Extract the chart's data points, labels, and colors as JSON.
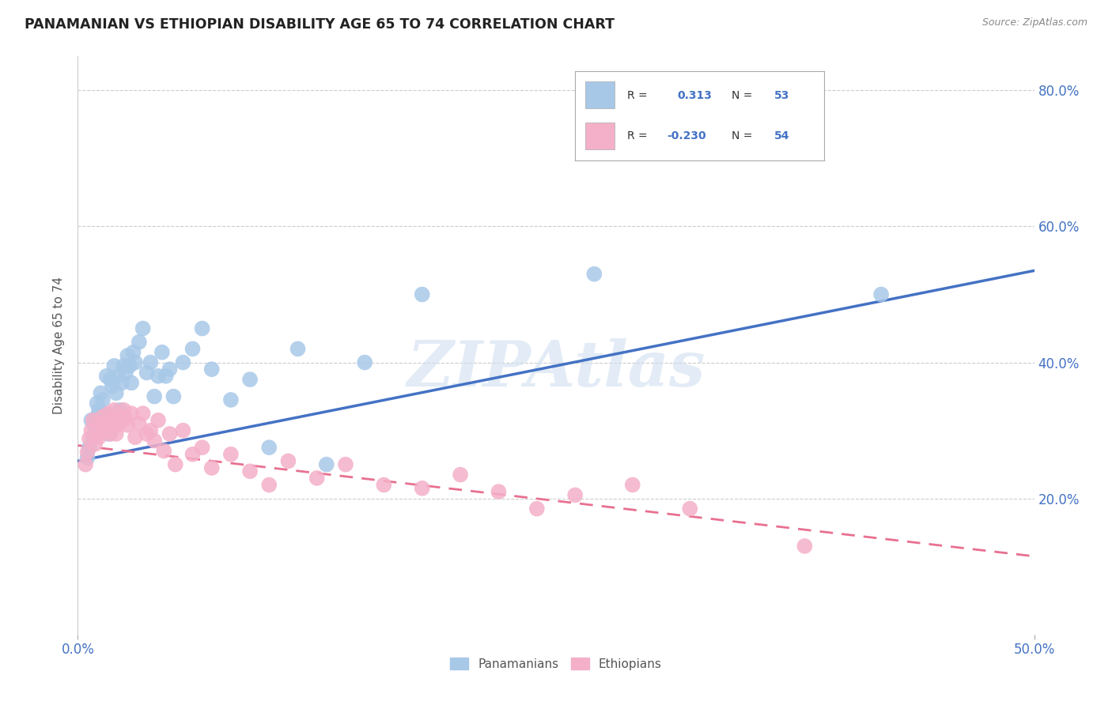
{
  "title": "PANAMANIAN VS ETHIOPIAN DISABILITY AGE 65 TO 74 CORRELATION CHART",
  "source": "Source: ZipAtlas.com",
  "ylabel": "Disability Age 65 to 74",
  "xlim": [
    0.0,
    0.5
  ],
  "ylim": [
    0.0,
    0.85
  ],
  "xtick_positions": [
    0.0,
    0.5
  ],
  "xticklabels": [
    "0.0%",
    "50.0%"
  ],
  "ytick_positions": [
    0.2,
    0.4,
    0.6,
    0.8
  ],
  "yticklabels": [
    "20.0%",
    "40.0%",
    "60.0%",
    "80.0%"
  ],
  "grid_yticks": [
    0.2,
    0.4,
    0.6,
    0.8
  ],
  "panamanian_color": "#a8c8e8",
  "ethiopian_color": "#f4b0c8",
  "trend_blue": "#4472c4",
  "trend_pink": "#e87090",
  "watermark_color": "#d0dff0",
  "legend_R1": "0.313",
  "legend_N1": "53",
  "legend_R2": "-0.230",
  "legend_N2": "54",
  "pan_trend_x0": 0.0,
  "pan_trend_y0": 0.255,
  "pan_trend_x1": 0.5,
  "pan_trend_y1": 0.535,
  "eth_trend_x0": 0.0,
  "eth_trend_y0": 0.278,
  "eth_trend_x1": 0.5,
  "eth_trend_y1": 0.115,
  "panamanian_x": [
    0.005,
    0.006,
    0.007,
    0.008,
    0.009,
    0.01,
    0.01,
    0.01,
    0.011,
    0.012,
    0.013,
    0.014,
    0.015,
    0.016,
    0.016,
    0.017,
    0.018,
    0.019,
    0.02,
    0.021,
    0.022,
    0.022,
    0.023,
    0.024,
    0.025,
    0.026,
    0.027,
    0.028,
    0.029,
    0.03,
    0.032,
    0.034,
    0.036,
    0.038,
    0.04,
    0.042,
    0.044,
    0.046,
    0.048,
    0.05,
    0.055,
    0.06,
    0.065,
    0.07,
    0.08,
    0.09,
    0.1,
    0.115,
    0.13,
    0.15,
    0.18,
    0.27,
    0.42
  ],
  "panamanian_y": [
    0.26,
    0.275,
    0.315,
    0.29,
    0.305,
    0.34,
    0.32,
    0.31,
    0.33,
    0.355,
    0.345,
    0.325,
    0.38,
    0.295,
    0.31,
    0.375,
    0.365,
    0.395,
    0.355,
    0.38,
    0.315,
    0.33,
    0.37,
    0.395,
    0.385,
    0.41,
    0.395,
    0.37,
    0.415,
    0.4,
    0.43,
    0.45,
    0.385,
    0.4,
    0.35,
    0.38,
    0.415,
    0.38,
    0.39,
    0.35,
    0.4,
    0.42,
    0.45,
    0.39,
    0.345,
    0.375,
    0.275,
    0.42,
    0.25,
    0.4,
    0.5,
    0.53,
    0.5
  ],
  "ethiopian_x": [
    0.004,
    0.005,
    0.006,
    0.007,
    0.008,
    0.009,
    0.01,
    0.01,
    0.011,
    0.012,
    0.013,
    0.014,
    0.015,
    0.016,
    0.017,
    0.018,
    0.019,
    0.02,
    0.021,
    0.022,
    0.023,
    0.024,
    0.025,
    0.026,
    0.028,
    0.03,
    0.032,
    0.034,
    0.036,
    0.038,
    0.04,
    0.042,
    0.045,
    0.048,
    0.051,
    0.055,
    0.06,
    0.065,
    0.07,
    0.08,
    0.09,
    0.1,
    0.11,
    0.125,
    0.14,
    0.16,
    0.18,
    0.2,
    0.22,
    0.24,
    0.26,
    0.29,
    0.32,
    0.38
  ],
  "ethiopian_y": [
    0.25,
    0.268,
    0.288,
    0.3,
    0.315,
    0.28,
    0.295,
    0.31,
    0.29,
    0.305,
    0.32,
    0.298,
    0.31,
    0.325,
    0.295,
    0.315,
    0.33,
    0.295,
    0.308,
    0.32,
    0.315,
    0.33,
    0.318,
    0.308,
    0.325,
    0.29,
    0.31,
    0.325,
    0.295,
    0.3,
    0.285,
    0.315,
    0.27,
    0.295,
    0.25,
    0.3,
    0.265,
    0.275,
    0.245,
    0.265,
    0.24,
    0.22,
    0.255,
    0.23,
    0.25,
    0.22,
    0.215,
    0.235,
    0.21,
    0.185,
    0.205,
    0.22,
    0.185,
    0.13
  ]
}
